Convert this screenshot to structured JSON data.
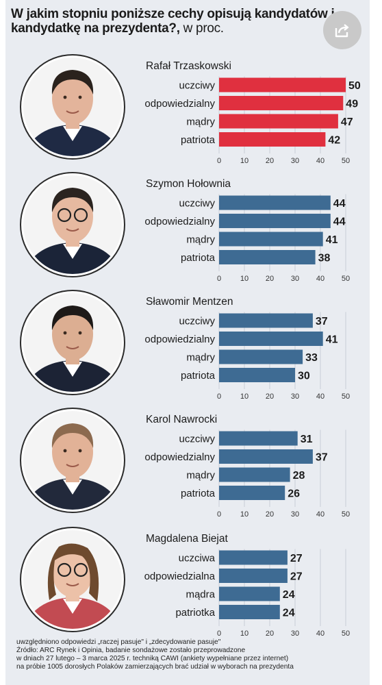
{
  "header": {
    "title_bold": "W jakim stopniu poniższe cechy opisują kandydatów i kandydatkę na prezydenta?,",
    "title_light": " w proc."
  },
  "share_icon": "share-icon",
  "colors": {
    "first": "#e0303f",
    "others": "#3e6b93",
    "text": "#1b1b1b",
    "panel": "#e9ecf1"
  },
  "chart_data": [
    {
      "type": "bar",
      "orientation": "horizontal",
      "title": "Rafał Trzaskowski",
      "categories": [
        "uczciwy",
        "odpowiedzialny",
        "mądry",
        "patriota"
      ],
      "values": [
        50,
        49,
        47,
        42
      ],
      "xlim": [
        0,
        50
      ],
      "xticks": [
        "0",
        "10",
        "20",
        "30",
        "40",
        "50"
      ],
      "color": "#e0303f"
    },
    {
      "type": "bar",
      "orientation": "horizontal",
      "title": "Szymon Hołownia",
      "categories": [
        "uczciwy",
        "odpowiedzialny",
        "mądry",
        "patriota"
      ],
      "values": [
        44,
        44,
        41,
        38
      ],
      "xlim": [
        0,
        50
      ],
      "xticks": [
        "0",
        "10",
        "20",
        "30",
        "40",
        "50"
      ],
      "color": "#3e6b93"
    },
    {
      "type": "bar",
      "orientation": "horizontal",
      "title": "Sławomir Mentzen",
      "categories": [
        "uczciwy",
        "odpowiedzialny",
        "mądry",
        "patriota"
      ],
      "values": [
        37,
        41,
        33,
        30
      ],
      "xlim": [
        0,
        50
      ],
      "xticks": [
        "0",
        "10",
        "20",
        "30",
        "40",
        "50"
      ],
      "color": "#3e6b93"
    },
    {
      "type": "bar",
      "orientation": "horizontal",
      "title": "Karol Nawrocki",
      "categories": [
        "uczciwy",
        "odpowiedzialny",
        "mądry",
        "patriota"
      ],
      "values": [
        31,
        37,
        28,
        26
      ],
      "xlim": [
        0,
        50
      ],
      "xticks": [
        "0",
        "10",
        "20",
        "30",
        "40",
        "50"
      ],
      "color": "#3e6b93"
    },
    {
      "type": "bar",
      "orientation": "horizontal",
      "title": "Magdalena Biejat",
      "categories": [
        "uczciwa",
        "odpowiedzialna",
        "mądra",
        "patriotka"
      ],
      "values": [
        27,
        27,
        24,
        24
      ],
      "xlim": [
        0,
        50
      ],
      "xticks": [
        "0",
        "10",
        "20",
        "30",
        "40",
        "50"
      ],
      "color": "#3e6b93"
    }
  ],
  "footer": {
    "note": "uwzględniono odpowiedzi „raczej pasuje\" i „zdecydowanie pasuje\"",
    "source_1": "Źródło: ARC Rynek i Opinia, badanie sondażowe zostało przeprowadzone",
    "source_2": "w dniach 27 lutego – 3 marca 2025 r. techniką CAWI (ankiety wypełniane przez internet)",
    "source_3": "na próbie 1005 dorosłych Polaków zamierzających brać udział w wyborach na prezydenta"
  }
}
